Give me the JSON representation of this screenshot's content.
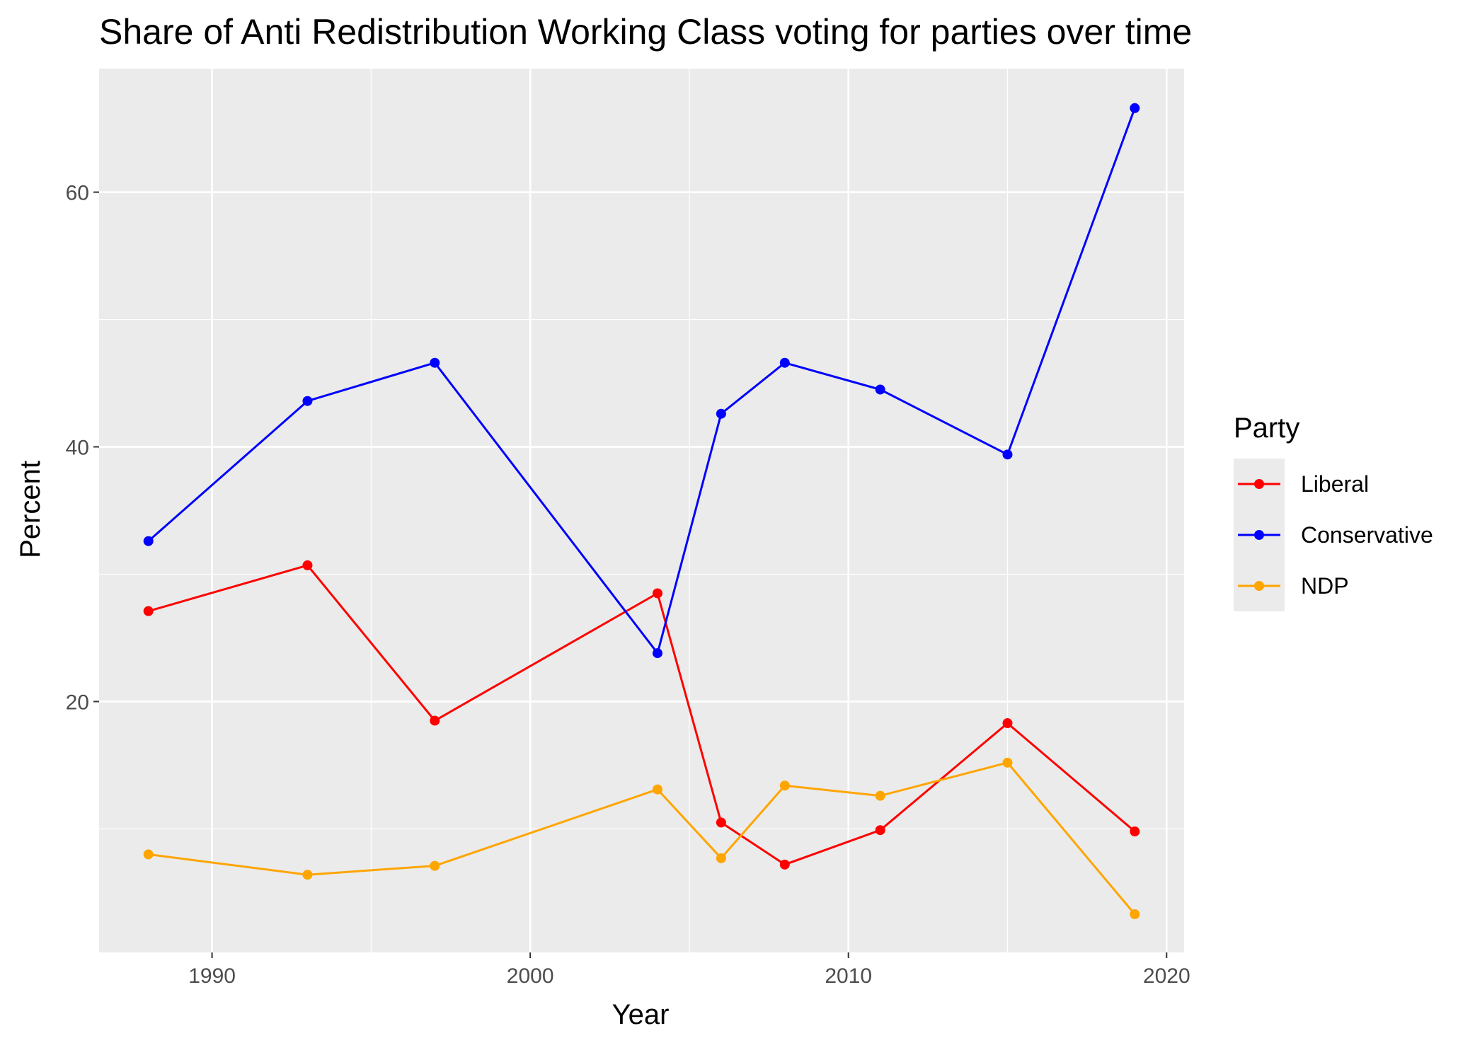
{
  "chart_data": {
    "type": "line",
    "title": "Share of Anti Redistribution Working Class voting for parties over time",
    "xlabel": "Year",
    "ylabel": "Percent",
    "xlim": [
      1986.45,
      2020.55
    ],
    "ylim": [
      0.3,
      69.7
    ],
    "x_ticks": [
      1990,
      2000,
      2010,
      2020
    ],
    "y_ticks": [
      20,
      40,
      60
    ],
    "grid": true,
    "legend": {
      "title": "Party",
      "position": "right"
    },
    "x": [
      1988,
      1993,
      1997,
      2004,
      2006,
      2008,
      2011,
      2015,
      2019
    ],
    "series": [
      {
        "name": "Liberal",
        "color": "#FF0000",
        "values": [
          27.1,
          30.7,
          18.5,
          28.5,
          10.5,
          7.2,
          9.9,
          18.3,
          9.8
        ]
      },
      {
        "name": "Conservative",
        "color": "#0000FF",
        "values": [
          32.6,
          43.6,
          46.6,
          23.8,
          42.6,
          46.6,
          44.5,
          39.4,
          66.6
        ]
      },
      {
        "name": "NDP",
        "color": "#FFA500",
        "values": [
          8.0,
          6.4,
          7.1,
          13.1,
          7.7,
          13.4,
          12.6,
          15.2,
          3.3
        ]
      }
    ]
  }
}
